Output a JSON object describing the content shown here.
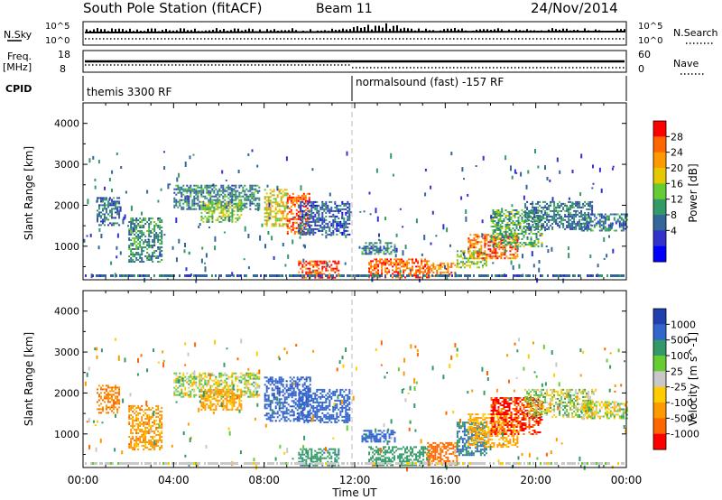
{
  "header": {
    "station": "South Pole Station (fitACF)",
    "beam": "Beam 11",
    "date": "24/Nov/2014"
  },
  "top_panel": {
    "left_label": "N.Sky",
    "left_ticks": [
      "10^5",
      "10^0"
    ],
    "right_label": "N.Search",
    "right_ticks": [
      "10^5",
      "10^0"
    ]
  },
  "freq_panel": {
    "left_label_line1": "Freq.",
    "left_label_line2": "[MHz]",
    "left_ticks": [
      "18",
      "8"
    ],
    "right_label": "Nave",
    "right_ticks": [
      "60",
      "0"
    ]
  },
  "cpid_panel": {
    "label": "CPID",
    "mode1": "themis 3300 RF",
    "mode2": "normalsound (fast) -157 RF"
  },
  "chart_data": [
    {
      "type": "heatmap",
      "name": "power",
      "ylabel": "Slant Range [km]",
      "ylim": [
        180,
        4500
      ],
      "yticks": [
        1000,
        2000,
        3000,
        4000
      ],
      "colorbar_label": "Power [dB]",
      "colorbar_ticks": [
        "28",
        "24",
        "20",
        "16",
        "12",
        "8",
        "4"
      ],
      "colorbar_colors": [
        "#ff0000",
        "#ff6600",
        "#ff9900",
        "#e6c800",
        "#66cc33",
        "#339966",
        "#336699",
        "#3333cc",
        "#0000ff"
      ],
      "regions": [
        {
          "t": [
            0.6,
            1.6
          ],
          "r": [
            1500,
            2200
          ],
          "level": 8
        },
        {
          "t": [
            2.0,
            3.5
          ],
          "r": [
            600,
            1700
          ],
          "level": 10
        },
        {
          "t": [
            4.0,
            7.8
          ],
          "r": [
            1900,
            2500
          ],
          "level": 9
        },
        {
          "t": [
            5.2,
            7.0
          ],
          "r": [
            1600,
            2100
          ],
          "level": 14
        },
        {
          "t": [
            8.0,
            9.0
          ],
          "r": [
            1500,
            2400
          ],
          "level": 18
        },
        {
          "t": [
            9.0,
            10.0
          ],
          "r": [
            1300,
            2300
          ],
          "level": 24
        },
        {
          "t": [
            9.5,
            11.8
          ],
          "r": [
            1300,
            2100
          ],
          "level": 6
        },
        {
          "t": [
            9.5,
            11.3
          ],
          "r": [
            250,
            650
          ],
          "level": 26
        },
        {
          "t": [
            12.6,
            15.3
          ],
          "r": [
            250,
            700
          ],
          "level": 25
        },
        {
          "t": [
            12.3,
            13.8
          ],
          "r": [
            800,
            1100
          ],
          "level": 9
        },
        {
          "t": [
            15.2,
            16.5
          ],
          "r": [
            250,
            600
          ],
          "level": 22
        },
        {
          "t": [
            16.5,
            17.8
          ],
          "r": [
            500,
            900
          ],
          "level": 14
        },
        {
          "t": [
            17.0,
            19.2
          ],
          "r": [
            700,
            1300
          ],
          "level": 24
        },
        {
          "t": [
            18.0,
            20.3
          ],
          "r": [
            1000,
            1900
          ],
          "level": 12
        },
        {
          "t": [
            19.5,
            22.5
          ],
          "r": [
            1400,
            2100
          ],
          "level": 8
        },
        {
          "t": [
            22.0,
            24.0
          ],
          "r": [
            1400,
            1800
          ],
          "level": 8
        }
      ]
    },
    {
      "type": "heatmap",
      "name": "velocity",
      "ylabel": "Slant Range [km]",
      "ylim": [
        180,
        4500
      ],
      "yticks": [
        1000,
        2000,
        3000,
        4000
      ],
      "colorbar_label": "Velocity [m s^-1]",
      "colorbar_ticks": [
        "1000",
        "500",
        "100",
        "25",
        "-25",
        "-100",
        "-500",
        "-1000"
      ],
      "colorbar_colors": [
        "#2040b0",
        "#3366cc",
        "#339966",
        "#66cc33",
        "#c8c8c8",
        "#ffcc00",
        "#ff9900",
        "#ff6600",
        "#ff0000"
      ],
      "regions": [
        {
          "t": [
            0.6,
            1.6
          ],
          "r": [
            1500,
            2200
          ],
          "v": -300
        },
        {
          "t": [
            2.0,
            3.5
          ],
          "r": [
            600,
            1700
          ],
          "v": -200
        },
        {
          "t": [
            4.0,
            7.8
          ],
          "r": [
            1900,
            2500
          ],
          "v": 0
        },
        {
          "t": [
            5.2,
            7.0
          ],
          "r": [
            1600,
            2100
          ],
          "v": -150
        },
        {
          "t": [
            8.0,
            10.0
          ],
          "r": [
            1300,
            2400
          ],
          "v": 700
        },
        {
          "t": [
            9.5,
            11.8
          ],
          "r": [
            1300,
            2100
          ],
          "v": 600
        },
        {
          "t": [
            9.5,
            11.3
          ],
          "r": [
            250,
            650
          ],
          "v": 300
        },
        {
          "t": [
            12.6,
            15.3
          ],
          "r": [
            250,
            700
          ],
          "v": 250
        },
        {
          "t": [
            12.3,
            13.8
          ],
          "r": [
            800,
            1100
          ],
          "v": 600
        },
        {
          "t": [
            15.2,
            16.5
          ],
          "r": [
            250,
            800
          ],
          "v": -400
        },
        {
          "t": [
            16.5,
            17.8
          ],
          "r": [
            500,
            1300
          ],
          "v": 400
        },
        {
          "t": [
            17.0,
            19.2
          ],
          "r": [
            700,
            1500
          ],
          "v": -150
        },
        {
          "t": [
            18.0,
            20.3
          ],
          "r": [
            1000,
            1900
          ],
          "v": -600
        },
        {
          "t": [
            19.5,
            22.5
          ],
          "r": [
            1400,
            2100
          ],
          "v": 20
        },
        {
          "t": [
            22.0,
            24.0
          ],
          "r": [
            1400,
            1800
          ],
          "v": 0
        }
      ]
    }
  ],
  "xaxis": {
    "label": "Time UT",
    "ticks": [
      "00:00",
      "04:00",
      "08:00",
      "12:00",
      "16:00",
      "20:00",
      "00:00"
    ],
    "range_hours": [
      0,
      24
    ],
    "mode_switch_hour": 12
  }
}
